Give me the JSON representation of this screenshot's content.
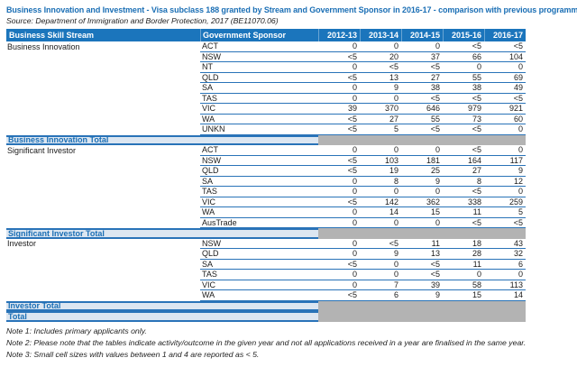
{
  "title": "Business Innovation and Investment - Visa subclass 188 granted by Stream and Government Sponsor in 2016-17 - comparison with previous programme year",
  "source": "Source: Department of Immigration and Border Protection, 2017 (BE11070.06)",
  "table": {
    "columns": [
      "Business Skill Stream",
      "Government Sponsor",
      "2012-13",
      "2013-14",
      "2014-15",
      "2015-16",
      "2016-17"
    ],
    "groups": [
      {
        "stream": "Business Innovation",
        "total_label": "Business Innovation Total",
        "rows": [
          {
            "sponsor": "ACT",
            "values": [
              "0",
              "0",
              "0",
              "<5",
              "<5"
            ]
          },
          {
            "sponsor": "NSW",
            "values": [
              "<5",
              "20",
              "37",
              "66",
              "104"
            ]
          },
          {
            "sponsor": "NT",
            "values": [
              "0",
              "<5",
              "<5",
              "0",
              "0"
            ]
          },
          {
            "sponsor": "QLD",
            "values": [
              "<5",
              "13",
              "27",
              "55",
              "69"
            ]
          },
          {
            "sponsor": "SA",
            "values": [
              "0",
              "9",
              "38",
              "38",
              "49"
            ]
          },
          {
            "sponsor": "TAS",
            "values": [
              "0",
              "0",
              "<5",
              "<5",
              "<5"
            ]
          },
          {
            "sponsor": "VIC",
            "values": [
              "39",
              "370",
              "646",
              "979",
              "921"
            ]
          },
          {
            "sponsor": "WA",
            "values": [
              "<5",
              "27",
              "55",
              "73",
              "60"
            ]
          },
          {
            "sponsor": "UNKN",
            "values": [
              "<5",
              "5",
              "<5",
              "<5",
              "0"
            ]
          }
        ]
      },
      {
        "stream": "Significant Investor",
        "total_label": "Significant Investor Total",
        "rows": [
          {
            "sponsor": "ACT",
            "values": [
              "0",
              "0",
              "0",
              "<5",
              "0"
            ]
          },
          {
            "sponsor": "NSW",
            "values": [
              "<5",
              "103",
              "181",
              "164",
              "117"
            ]
          },
          {
            "sponsor": "QLD",
            "values": [
              "<5",
              "19",
              "25",
              "27",
              "9"
            ]
          },
          {
            "sponsor": "SA",
            "values": [
              "0",
              "8",
              "9",
              "8",
              "12"
            ]
          },
          {
            "sponsor": "TAS",
            "values": [
              "0",
              "0",
              "0",
              "<5",
              "0"
            ]
          },
          {
            "sponsor": "VIC",
            "values": [
              "<5",
              "142",
              "362",
              "338",
              "259"
            ]
          },
          {
            "sponsor": "WA",
            "values": [
              "0",
              "14",
              "15",
              "11",
              "5"
            ]
          },
          {
            "sponsor": "AusTrade",
            "values": [
              "0",
              "0",
              "0",
              "<5",
              "<5"
            ]
          }
        ]
      },
      {
        "stream": "Investor",
        "total_label": "Investor Total",
        "rows": [
          {
            "sponsor": "NSW",
            "values": [
              "0",
              "<5",
              "11",
              "18",
              "43"
            ]
          },
          {
            "sponsor": "QLD",
            "values": [
              "0",
              "9",
              "13",
              "28",
              "32"
            ]
          },
          {
            "sponsor": "SA",
            "values": [
              "<5",
              "0",
              "<5",
              "11",
              "6"
            ]
          },
          {
            "sponsor": "TAS",
            "values": [
              "0",
              "0",
              "<5",
              "0",
              "0"
            ]
          },
          {
            "sponsor": "VIC",
            "values": [
              "0",
              "7",
              "39",
              "58",
              "113"
            ]
          },
          {
            "sponsor": "WA",
            "values": [
              "<5",
              "6",
              "9",
              "15",
              "14"
            ]
          }
        ]
      }
    ],
    "grand_total_label": "Total"
  },
  "notes": [
    "Note 1: Includes primary applicants only.",
    "Note 2: Please note that the tables indicate activity/outcome in the given year and not all applications received in a year are finalised in the same year.",
    "Note 3: Small cell sizes with values between 1 and 4 are reported as < 5."
  ],
  "colors": {
    "header_bg": "#1B75BC",
    "title": "#1B6FB5",
    "row_border": "#2973B8",
    "total_bg": "#DCE6F1",
    "total_text": "#1B6FB5",
    "total_gray": "#B3B3B3"
  }
}
